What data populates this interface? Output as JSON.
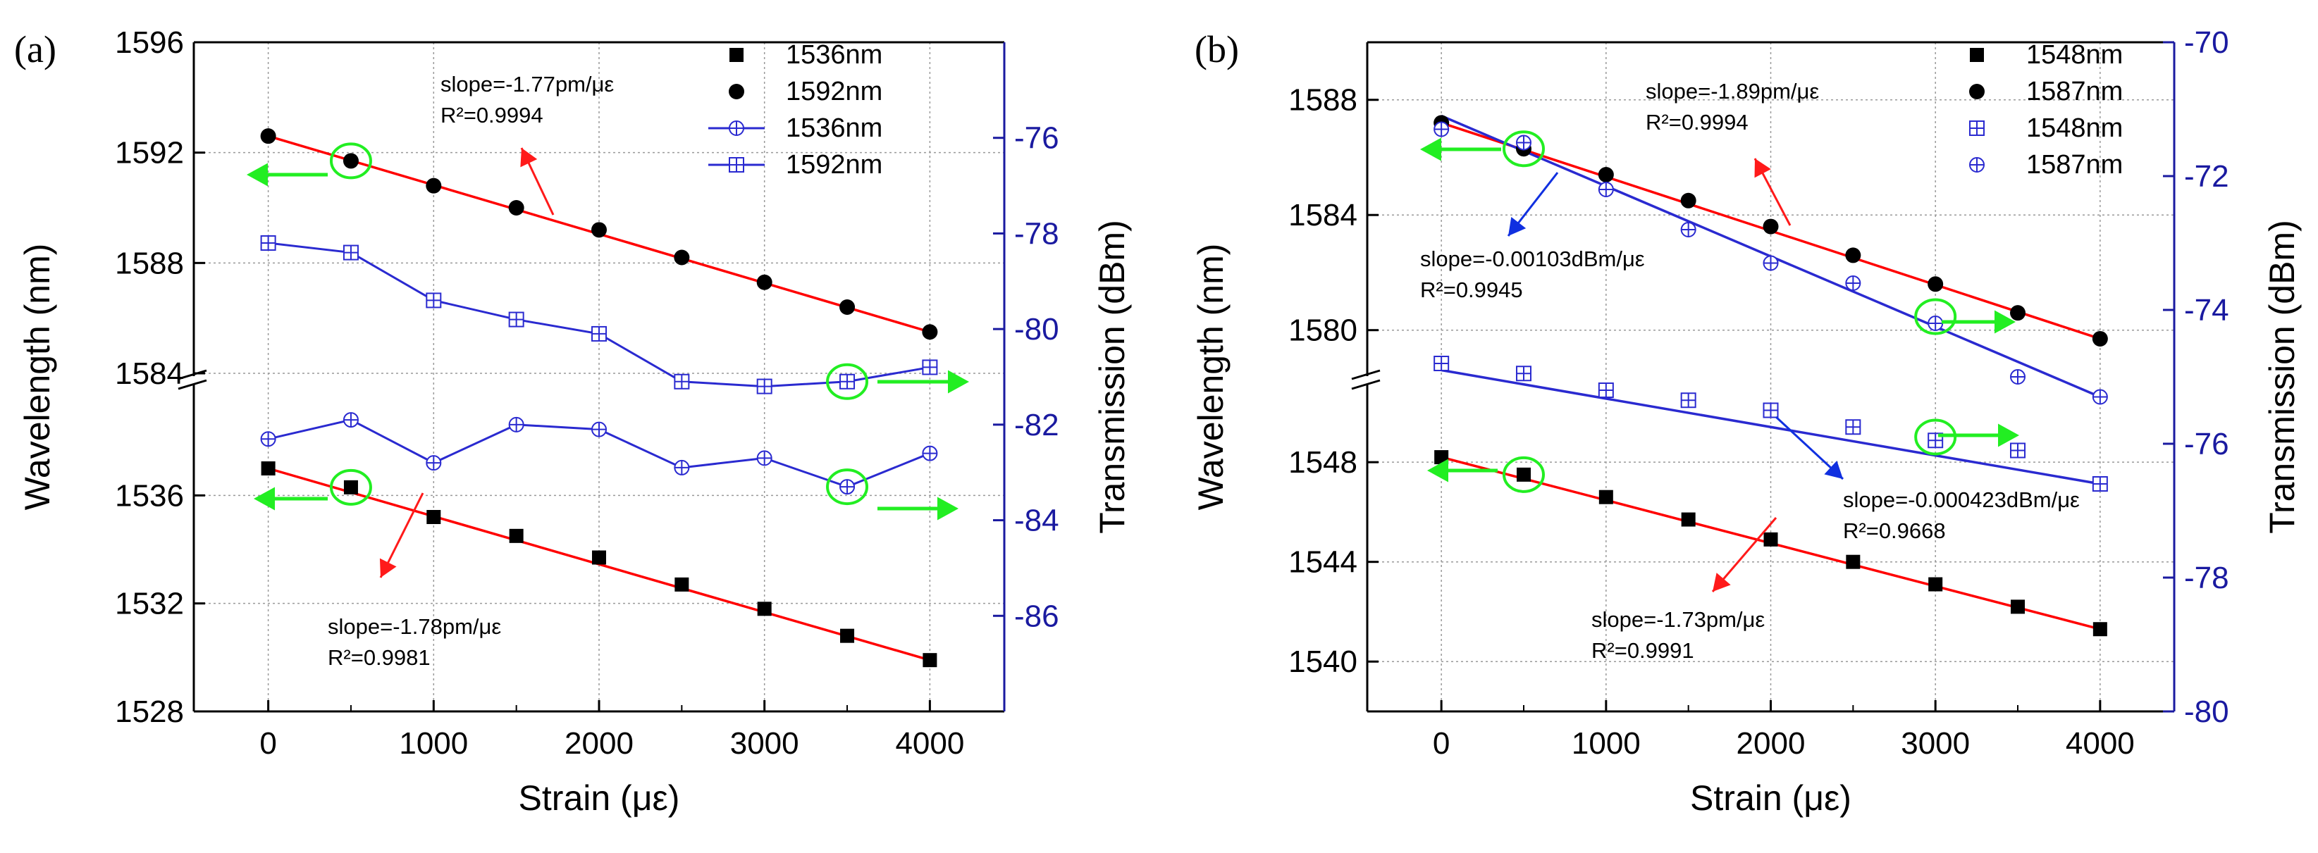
{
  "figure": {
    "colors": {
      "axis": "#000000",
      "right_axis": "#1a1aa0",
      "fit": "#ff0000",
      "transmission": "#2a2ad0",
      "arrow_green": "#22ee22",
      "arrow_red": "#ff1a1a",
      "arrow_blue": "#1030e0",
      "grid": "#999999"
    }
  },
  "chart_data": [
    {
      "type": "line",
      "panel_label": "(a)",
      "xlabel": "Strain (με)",
      "ylabel": "Wavelength (nm)",
      "y2label": "Transmission (dBm)",
      "xlim": [
        -450,
        4450
      ],
      "x_ticks": [
        "0",
        "1000",
        "2000",
        "3000",
        "4000"
      ],
      "y_segments": [
        {
          "name": "upper",
          "ylim": [
            1584,
            1596
          ],
          "ticks": [
            "1584",
            "1588",
            "1592",
            "1596"
          ]
        },
        {
          "name": "lower",
          "ylim": [
            1528,
            1540
          ],
          "ticks": [
            "1528",
            "1532",
            "1536"
          ]
        }
      ],
      "y2lim": [
        -88,
        -74
      ],
      "y2_ticks": [
        "-76",
        "-78",
        "-80",
        "-82",
        "-84",
        "-86"
      ],
      "grid": true,
      "legend_position": "top-right",
      "x": [
        0,
        500,
        1000,
        1500,
        2000,
        2500,
        3000,
        3500,
        4000
      ],
      "series": [
        {
          "name": "1536nm",
          "axis": "left",
          "segment": "lower",
          "marker": "square",
          "line": false,
          "values": [
            1537.0,
            1536.3,
            1535.2,
            1534.5,
            1533.7,
            1532.7,
            1531.8,
            1530.8,
            1529.9
          ]
        },
        {
          "name": "1592nm",
          "axis": "left",
          "segment": "upper",
          "marker": "circle",
          "line": false,
          "values": [
            1592.6,
            1591.7,
            1590.8,
            1590.0,
            1589.2,
            1588.2,
            1587.3,
            1586.4,
            1585.5
          ]
        },
        {
          "name": "1536nm",
          "axis": "right",
          "marker": "circle-plus",
          "line": true,
          "values": [
            -82.3,
            -81.9,
            -82.8,
            -82.0,
            -82.1,
            -82.9,
            -82.7,
            -83.3,
            -82.6
          ]
        },
        {
          "name": "1592nm",
          "axis": "right",
          "marker": "square-plus",
          "line": true,
          "values": [
            -78.2,
            -78.4,
            -79.4,
            -79.8,
            -80.1,
            -81.1,
            -81.2,
            -81.1,
            -80.8
          ]
        }
      ],
      "fits": [
        {
          "segment": "upper",
          "x": [
            0,
            4000
          ],
          "values": [
            1592.6,
            1585.5
          ]
        },
        {
          "segment": "lower",
          "x": [
            0,
            4000
          ],
          "values": [
            1537.0,
            1529.9
          ]
        }
      ],
      "annotations": [
        {
          "lines": [
            "slope=-1.77pm/με",
            "R²=0.9994"
          ]
        },
        {
          "lines": [
            "slope=-1.78pm/με",
            "R²=0.9981"
          ]
        }
      ]
    },
    {
      "type": "line",
      "panel_label": "(b)",
      "xlabel": "Strain (με)",
      "ylabel": "Wavelength (nm)",
      "y2label": "Transmission (dBm)",
      "xlim": [
        -450,
        4450
      ],
      "x_ticks": [
        "0",
        "1000",
        "2000",
        "3000",
        "4000"
      ],
      "y_segments": [
        {
          "name": "upper",
          "ylim": [
            1578.5,
            1590
          ],
          "ticks": [
            "1580",
            "1584",
            "1588"
          ]
        },
        {
          "name": "lower",
          "ylim": [
            1538,
            1551
          ],
          "ticks": [
            "1540",
            "1544",
            "1548"
          ]
        }
      ],
      "y2lim": [
        -80,
        -70
      ],
      "y2_ticks": [
        "-70",
        "-72",
        "-74",
        "-76",
        "-78",
        "-80"
      ],
      "grid": true,
      "legend_position": "top-right",
      "x": [
        0,
        500,
        1000,
        1500,
        2000,
        2500,
        3000,
        3500,
        4000
      ],
      "series": [
        {
          "name": "1548nm",
          "axis": "left",
          "segment": "lower",
          "marker": "square",
          "line": false,
          "values": [
            1548.2,
            1547.5,
            1546.6,
            1545.7,
            1544.9,
            1544.0,
            1543.1,
            1542.2,
            1541.3
          ]
        },
        {
          "name": "1587nm",
          "axis": "left",
          "segment": "upper",
          "marker": "circle",
          "line": false,
          "values": [
            1587.2,
            1586.3,
            1585.4,
            1584.5,
            1583.6,
            1582.6,
            1581.6,
            1580.6,
            1579.7
          ]
        },
        {
          "name": "1548nm",
          "axis": "right",
          "marker": "square-plus",
          "line": false,
          "values": [
            -74.8,
            -74.95,
            -75.2,
            -75.35,
            -75.5,
            -75.75,
            -75.95,
            -76.1,
            -76.6
          ]
        },
        {
          "name": "1587nm",
          "axis": "right",
          "marker": "circle-plus",
          "line": false,
          "values": [
            -71.3,
            -71.5,
            -72.2,
            -72.8,
            -73.3,
            -73.6,
            -74.2,
            -75.0,
            -75.3
          ]
        }
      ],
      "fits": [
        {
          "axis": "left",
          "segment": "upper",
          "color": "fit",
          "x": [
            0,
            4000
          ],
          "values": [
            1587.2,
            1579.7
          ]
        },
        {
          "axis": "left",
          "segment": "lower",
          "color": "fit",
          "x": [
            0,
            4000
          ],
          "values": [
            1548.2,
            1541.3
          ]
        },
        {
          "axis": "right",
          "color": "transmission",
          "x": [
            0,
            4000
          ],
          "values": [
            -71.1,
            -75.3
          ]
        },
        {
          "axis": "right",
          "color": "transmission",
          "x": [
            0,
            4000
          ],
          "values": [
            -74.9,
            -76.6
          ]
        }
      ],
      "annotations": [
        {
          "lines": [
            "slope=-1.89pm/με",
            "R²=0.9994"
          ]
        },
        {
          "lines": [
            "slope=-0.00103dBm/με",
            "R²=0.9945"
          ]
        },
        {
          "lines": [
            "slope=-0.000423dBm/με",
            "R²=0.9668"
          ]
        },
        {
          "lines": [
            "slope=-1.73pm/με",
            "R²=0.9991"
          ]
        }
      ]
    }
  ]
}
